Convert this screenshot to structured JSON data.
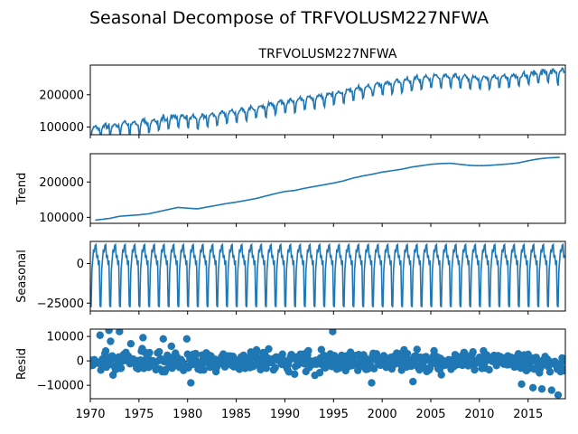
{
  "figure": {
    "suptitle": "Seasonal Decompose of TRFVOLUSM227NFWA"
  },
  "colors": {
    "line": "#1f77b4",
    "axes": "#000000",
    "background": "#ffffff"
  },
  "x_ticks": [
    "1970",
    "1975",
    "1980",
    "1985",
    "1990",
    "1995",
    "2000",
    "2005",
    "2010",
    "2015"
  ],
  "chart_data": [
    {
      "type": "line",
      "panel": "observed",
      "title": "TRFVOLUSM227NFWA",
      "ylabel": "",
      "xlim": [
        1970.0,
        2018.83
      ],
      "ylim": [
        76000,
        292000
      ],
      "yticks": [
        100000,
        200000
      ],
      "ytick_labels": [
        "100000",
        "200000"
      ],
      "x_start": 1970.0,
      "frequency": "monthly",
      "series": [
        {
          "generator": "trend + seasonal + resid",
          "values_summary": {
            "start": 86000,
            "end": 263000,
            "min_approx": 80000,
            "max_approx": 285000
          }
        }
      ]
    },
    {
      "type": "line",
      "panel": "trend",
      "title": "",
      "ylabel": "Trend",
      "xlim": [
        1970.0,
        2018.83
      ],
      "ylim": [
        83000,
        280000
      ],
      "yticks": [
        100000,
        200000
      ],
      "ytick_labels": [
        "100000",
        "200000"
      ],
      "trend_points": [
        [
          1970.5,
          92000
        ],
        [
          1972,
          97000
        ],
        [
          1973,
          103000
        ],
        [
          1974,
          105000
        ],
        [
          1975,
          107000
        ],
        [
          1976,
          110000
        ],
        [
          1977,
          116000
        ],
        [
          1978,
          122000
        ],
        [
          1979,
          128000
        ],
        [
          1980,
          126000
        ],
        [
          1981,
          124000
        ],
        [
          1982,
          129000
        ],
        [
          1983,
          134000
        ],
        [
          1984,
          139000
        ],
        [
          1985,
          143000
        ],
        [
          1986,
          148000
        ],
        [
          1987,
          153000
        ],
        [
          1988,
          160000
        ],
        [
          1989,
          167000
        ],
        [
          1990,
          173000
        ],
        [
          1991,
          176000
        ],
        [
          1992,
          182000
        ],
        [
          1993,
          187000
        ],
        [
          1994,
          192000
        ],
        [
          1995,
          197000
        ],
        [
          1996,
          203000
        ],
        [
          1997,
          211000
        ],
        [
          1998,
          217000
        ],
        [
          1999,
          222000
        ],
        [
          2000,
          228000
        ],
        [
          2001,
          232000
        ],
        [
          2002,
          236000
        ],
        [
          2003,
          242000
        ],
        [
          2004,
          246000
        ],
        [
          2005,
          250000
        ],
        [
          2006,
          252000
        ],
        [
          2007,
          253000
        ],
        [
          2008,
          250000
        ],
        [
          2009,
          247000
        ],
        [
          2010,
          246000
        ],
        [
          2011,
          247000
        ],
        [
          2012,
          249000
        ],
        [
          2013,
          251000
        ],
        [
          2014,
          254000
        ],
        [
          2015,
          260000
        ],
        [
          2016,
          265000
        ],
        [
          2017,
          268000
        ],
        [
          2018.3,
          270000
        ]
      ]
    },
    {
      "type": "line",
      "panel": "seasonal",
      "title": "",
      "ylabel": "Seasonal",
      "xlim": [
        1970.0,
        2018.83
      ],
      "ylim": [
        -30000,
        14000
      ],
      "yticks": [
        0,
        -25000
      ],
      "ytick_labels": [
        "0",
        "−25000"
      ],
      "monthly_pattern": [
        -26500,
        -27500,
        -4000,
        2500,
        9000,
        7000,
        11500,
        12000,
        3500,
        5500,
        -1000,
        2000
      ]
    },
    {
      "type": "scatter",
      "panel": "resid",
      "title": "",
      "ylabel": "Resid",
      "xlim": [
        1970.0,
        2018.83
      ],
      "ylim": [
        -15500,
        13000
      ],
      "yticks": [
        10000,
        0,
        -10000
      ],
      "ytick_labels": [
        "10000",
        "0",
        "−10000"
      ],
      "baseline": 0,
      "notable_points": [
        [
          1971.0,
          10500
        ],
        [
          1971.9,
          12500
        ],
        [
          1973.0,
          12000
        ],
        [
          1972.1,
          8000
        ],
        [
          1974.2,
          7000
        ],
        [
          1975.3,
          5000
        ],
        [
          1975.4,
          9500
        ],
        [
          1977.5,
          9000
        ],
        [
          1978.3,
          6000
        ],
        [
          1979.9,
          9000
        ],
        [
          1980.3,
          -9000
        ],
        [
          1994.9,
          12000
        ],
        [
          1998.9,
          -9000
        ],
        [
          2003.2,
          -8500
        ],
        [
          2014.3,
          -9500
        ],
        [
          2015.5,
          -11000
        ],
        [
          2016.4,
          -11500
        ],
        [
          2017.4,
          -12000
        ],
        [
          2018.1,
          -14000
        ]
      ]
    }
  ]
}
